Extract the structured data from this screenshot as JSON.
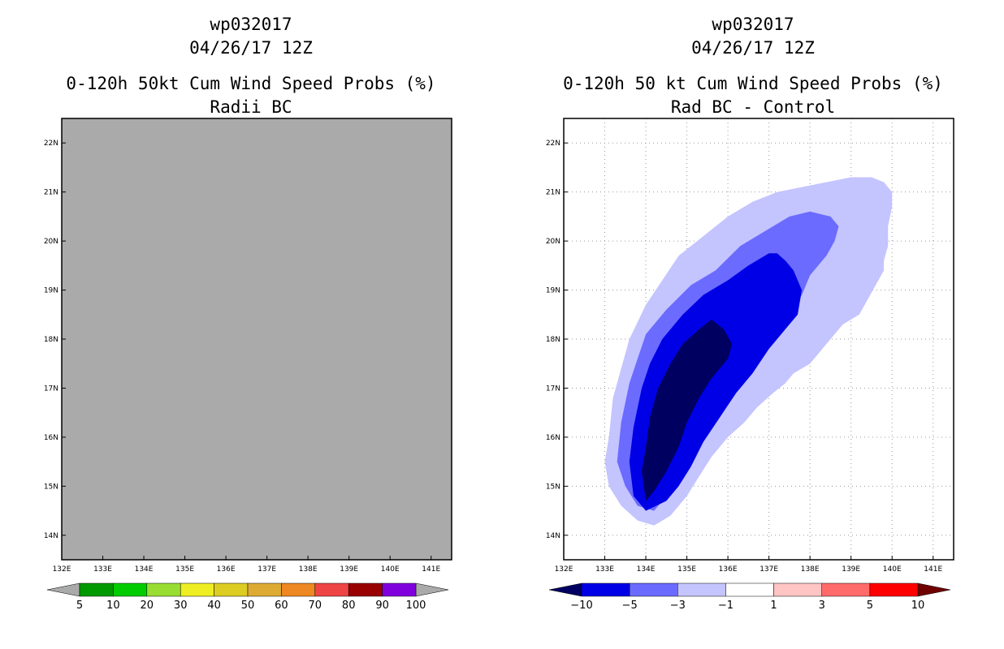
{
  "chart_data": [
    {
      "type": "contour-map",
      "title_lines": [
        "wp032017",
        "04/26/17 12Z",
        "0-120h 50kt Cum Wind Speed Probs (%)",
        "Radii BC"
      ],
      "x_ticks": [
        "132E",
        "133E",
        "134E",
        "135E",
        "136E",
        "137E",
        "138E",
        "139E",
        "140E",
        "141E"
      ],
      "y_ticks": [
        "14N",
        "15N",
        "16N",
        "17N",
        "18N",
        "19N",
        "20N",
        "21N",
        "22N"
      ],
      "xlim": [
        132,
        141.5
      ],
      "ylim": [
        13.5,
        22.5
      ],
      "grid": false,
      "background_color": "#aaaaaa",
      "colorbar": {
        "labels": [
          "5",
          "10",
          "20",
          "30",
          "40",
          "50",
          "60",
          "70",
          "80",
          "90",
          "100"
        ],
        "colors": [
          "#009900",
          "#00cc00",
          "#99dd33",
          "#eeee22",
          "#ddcc22",
          "#ddaa33",
          "#ee8822",
          "#ee4444",
          "#990000",
          "#8000dd"
        ],
        "end_colors": [
          "#aaaaaa",
          "#aaaaaa"
        ]
      },
      "contours": []
    },
    {
      "type": "contour-map",
      "title_lines": [
        "wp032017",
        "04/26/17 12Z",
        "0-120h 50 kt Cum Wind Speed Probs (%)",
        "Rad BC - Control"
      ],
      "x_ticks": [
        "132E",
        "133E",
        "134E",
        "135E",
        "136E",
        "137E",
        "138E",
        "139E",
        "140E",
        "141E"
      ],
      "y_ticks": [
        "14N",
        "15N",
        "16N",
        "17N",
        "18N",
        "19N",
        "20N",
        "21N",
        "22N"
      ],
      "xlim": [
        132,
        141.5
      ],
      "ylim": [
        13.5,
        22.5
      ],
      "grid": true,
      "background_color": "#ffffff",
      "colorbar": {
        "labels": [
          "-10",
          "-5",
          "-3",
          "-1",
          "1",
          "3",
          "5",
          "10"
        ],
        "colors": [
          "#0000e6",
          "#6b6bff",
          "#c4c4ff",
          "#ffffff",
          "#ffc4c4",
          "#ff6b6b",
          "#ff0000"
        ],
        "end_colors": [
          "#000060",
          "#700000"
        ]
      },
      "contours": [
        {
          "level": "-1",
          "color": "#c4c4ff",
          "points": [
            [
              133.0,
              15.5
            ],
            [
              133.1,
              16.0
            ],
            [
              133.2,
              16.8
            ],
            [
              133.4,
              17.4
            ],
            [
              133.6,
              18.0
            ],
            [
              134.0,
              18.7
            ],
            [
              134.4,
              19.2
            ],
            [
              134.8,
              19.7
            ],
            [
              135.4,
              20.1
            ],
            [
              136.0,
              20.5
            ],
            [
              136.6,
              20.8
            ],
            [
              137.2,
              21.0
            ],
            [
              137.8,
              21.1
            ],
            [
              138.4,
              21.2
            ],
            [
              139.0,
              21.3
            ],
            [
              139.5,
              21.3
            ],
            [
              139.8,
              21.2
            ],
            [
              140.0,
              21.0
            ],
            [
              140.0,
              20.7
            ],
            [
              139.9,
              20.3
            ],
            [
              139.9,
              19.9
            ],
            [
              139.8,
              19.6
            ],
            [
              139.8,
              19.4
            ],
            [
              139.6,
              19.1
            ],
            [
              139.4,
              18.8
            ],
            [
              139.2,
              18.5
            ],
            [
              138.8,
              18.3
            ],
            [
              138.4,
              17.9
            ],
            [
              138.0,
              17.5
            ],
            [
              137.6,
              17.3
            ],
            [
              137.4,
              17.1
            ],
            [
              137.1,
              16.9
            ],
            [
              136.7,
              16.6
            ],
            [
              136.4,
              16.3
            ],
            [
              136.0,
              16.0
            ],
            [
              135.6,
              15.6
            ],
            [
              135.3,
              15.2
            ],
            [
              135.0,
              14.8
            ],
            [
              134.6,
              14.4
            ],
            [
              134.2,
              14.2
            ],
            [
              133.8,
              14.3
            ],
            [
              133.4,
              14.6
            ],
            [
              133.1,
              15.0
            ],
            [
              133.0,
              15.5
            ]
          ]
        },
        {
          "level": "-3",
          "color": "#6b6bff",
          "points": [
            [
              133.3,
              15.5
            ],
            [
              133.4,
              16.3
            ],
            [
              133.6,
              17.1
            ],
            [
              133.8,
              17.6
            ],
            [
              134.0,
              18.1
            ],
            [
              134.5,
              18.6
            ],
            [
              135.1,
              19.1
            ],
            [
              135.7,
              19.4
            ],
            [
              136.3,
              19.9
            ],
            [
              136.9,
              20.2
            ],
            [
              137.5,
              20.5
            ],
            [
              138.0,
              20.6
            ],
            [
              138.5,
              20.5
            ],
            [
              138.7,
              20.3
            ],
            [
              138.6,
              20.0
            ],
            [
              138.4,
              19.7
            ],
            [
              138.0,
              19.3
            ],
            [
              137.8,
              18.9
            ],
            [
              137.5,
              18.5
            ],
            [
              137.0,
              18.0
            ],
            [
              136.6,
              17.6
            ],
            [
              136.2,
              17.2
            ],
            [
              135.7,
              16.7
            ],
            [
              135.3,
              16.2
            ],
            [
              135.0,
              15.7
            ],
            [
              134.8,
              15.2
            ],
            [
              134.5,
              14.8
            ],
            [
              134.2,
              14.5
            ],
            [
              133.8,
              14.6
            ],
            [
              133.5,
              15.0
            ],
            [
              133.3,
              15.5
            ]
          ]
        },
        {
          "level": "-5",
          "color": "#0000e6",
          "points": [
            [
              133.6,
              15.5
            ],
            [
              133.7,
              16.2
            ],
            [
              133.9,
              17.0
            ],
            [
              134.1,
              17.5
            ],
            [
              134.4,
              18.0
            ],
            [
              134.9,
              18.5
            ],
            [
              135.4,
              18.9
            ],
            [
              136.0,
              19.2
            ],
            [
              136.5,
              19.5
            ],
            [
              137.0,
              19.75
            ],
            [
              137.2,
              19.75
            ],
            [
              137.4,
              19.6
            ],
            [
              137.6,
              19.4
            ],
            [
              137.8,
              19.0
            ],
            [
              137.7,
              18.5
            ],
            [
              137.4,
              18.2
            ],
            [
              137.0,
              17.8
            ],
            [
              136.6,
              17.3
            ],
            [
              136.2,
              16.9
            ],
            [
              135.8,
              16.4
            ],
            [
              135.4,
              15.9
            ],
            [
              135.1,
              15.4
            ],
            [
              134.8,
              15.0
            ],
            [
              134.5,
              14.7
            ],
            [
              134.0,
              14.5
            ],
            [
              133.7,
              14.8
            ],
            [
              133.6,
              15.5
            ]
          ]
        },
        {
          "level": "-10",
          "color": "#000060",
          "points": [
            [
              133.9,
              15.3
            ],
            [
              134.0,
              15.8
            ],
            [
              134.1,
              16.4
            ],
            [
              134.3,
              17.0
            ],
            [
              134.6,
              17.5
            ],
            [
              134.9,
              17.9
            ],
            [
              135.3,
              18.2
            ],
            [
              135.6,
              18.4
            ],
            [
              135.9,
              18.2
            ],
            [
              136.1,
              17.9
            ],
            [
              136.0,
              17.6
            ],
            [
              135.6,
              17.2
            ],
            [
              135.3,
              16.8
            ],
            [
              135.0,
              16.3
            ],
            [
              134.8,
              15.8
            ],
            [
              134.5,
              15.3
            ],
            [
              134.2,
              14.9
            ],
            [
              134.0,
              14.7
            ],
            [
              133.9,
              15.3
            ]
          ]
        }
      ]
    }
  ]
}
